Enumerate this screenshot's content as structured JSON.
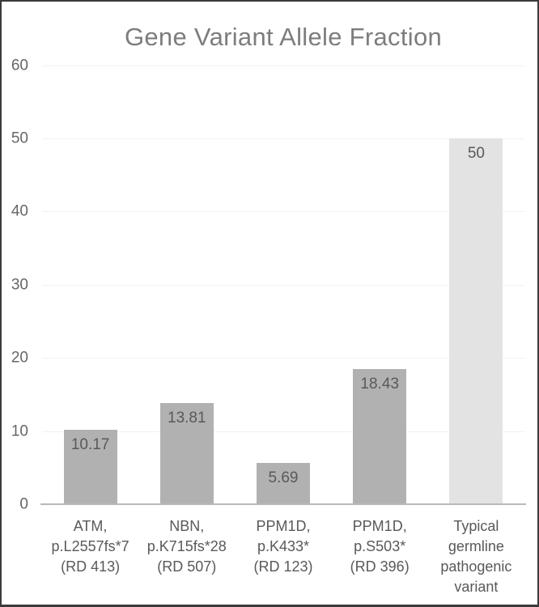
{
  "chart_data": {
    "type": "bar",
    "title": "Gene Variant Allele Fraction",
    "categories": [
      [
        "ATM,",
        "p.L2557fs*7",
        "(RD 413)"
      ],
      [
        "NBN,",
        "p.K715fs*28",
        "(RD 507)"
      ],
      [
        "PPM1D,",
        "p.K433*",
        "(RD 123)"
      ],
      [
        "PPM1D,",
        "p.S503*",
        "(RD 396)"
      ],
      [
        "Typical",
        "germline",
        "pathogenic",
        "variant"
      ]
    ],
    "values": [
      10.17,
      13.81,
      5.69,
      18.43,
      50
    ],
    "data_labels": [
      "10.17",
      "13.81",
      "5.69",
      "18.43",
      "50"
    ],
    "bar_colors": [
      "#b1b1b1",
      "#b1b1b1",
      "#b1b1b1",
      "#b1b1b1",
      "#e3e3e3"
    ],
    "xlabel": "",
    "ylabel": "",
    "ylim": [
      0,
      60
    ],
    "yticks": [
      0,
      10,
      20,
      30,
      40,
      50,
      60
    ],
    "ytick_labels": [
      "0",
      "10",
      "20",
      "30",
      "40",
      "50",
      "60"
    ],
    "grid": true,
    "legend": "none",
    "styles": {
      "title_color": "#7d7d7d",
      "tick_label_color": "#666666",
      "category_label_color": "#595959",
      "data_label_color": "#595959",
      "gridline_color": "#f1f1f1",
      "axis_line_color": "#b8b8b8",
      "frame_border_color": "#3b3b3b",
      "background_color": "#ffffff"
    }
  }
}
